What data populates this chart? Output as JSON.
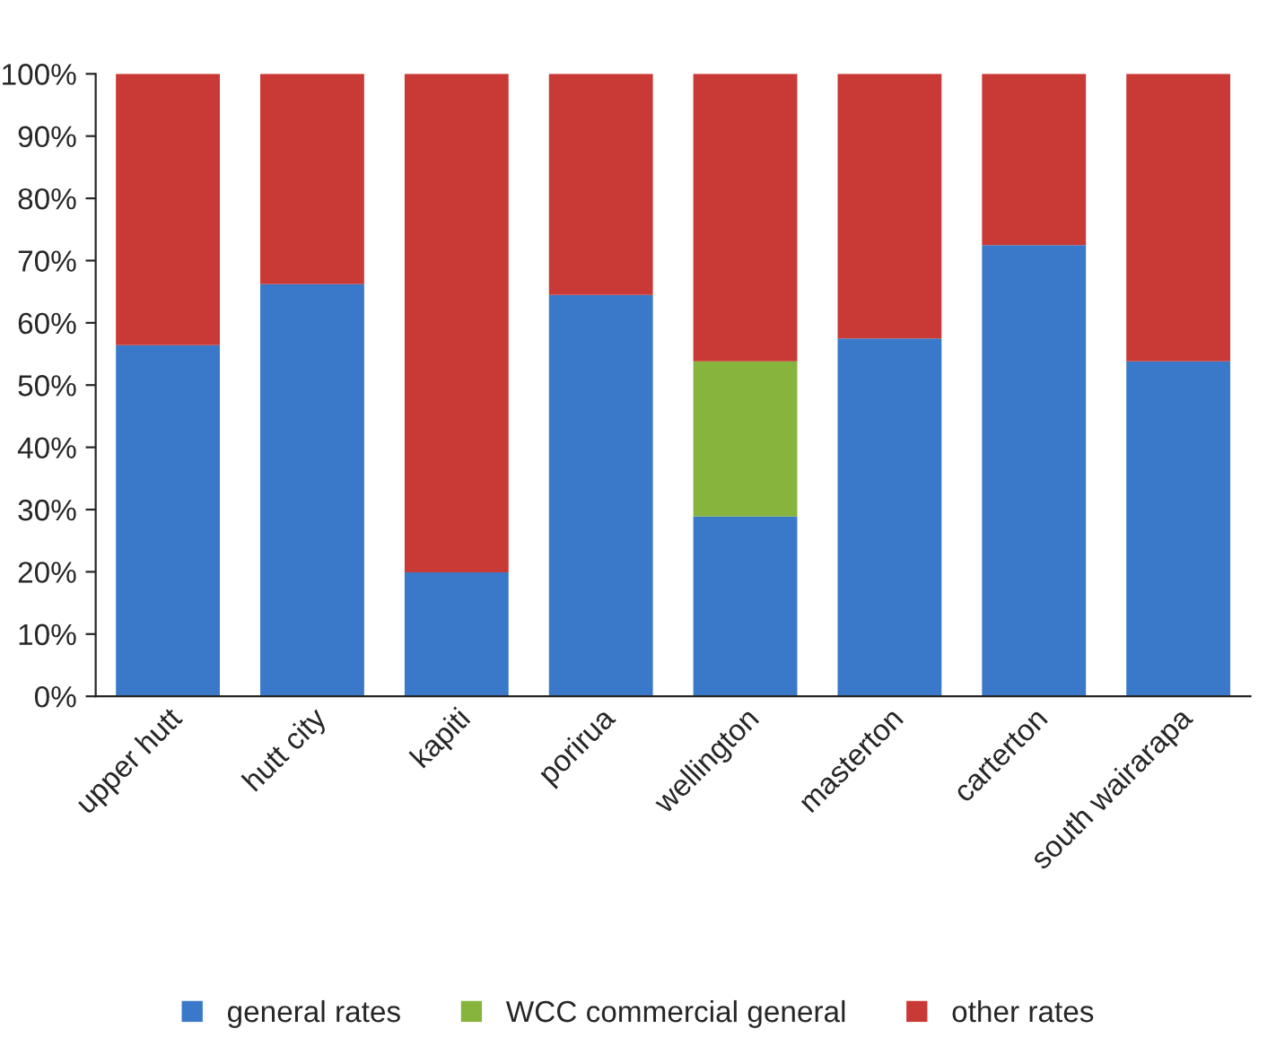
{
  "chart_data": {
    "type": "bar",
    "stacked": true,
    "categories": [
      "upper hutt",
      "hutt city",
      "kapiti",
      "porirua",
      "wellington",
      "masterton",
      "carterton",
      "south wairarapa"
    ],
    "series": [
      {
        "name": "general rates",
        "color": "#3a78c9",
        "values": [
          56.4,
          66.2,
          19.9,
          64.5,
          28.9,
          57.5,
          72.5,
          53.8
        ]
      },
      {
        "name": "WCC commercial general",
        "color": "#86b43c",
        "values": [
          null,
          null,
          null,
          null,
          24.9,
          null,
          null,
          null
        ]
      },
      {
        "name": "other rates",
        "color": "#c93a36",
        "values": [
          43.6,
          33.8,
          80.1,
          35.5,
          46.2,
          42.5,
          27.5,
          46.2
        ]
      }
    ],
    "ylim": [
      0,
      100
    ],
    "yticks": [
      {
        "value": 0,
        "label": "0%"
      },
      {
        "value": 10,
        "label": "10%"
      },
      {
        "value": 20,
        "label": "20%"
      },
      {
        "value": 30,
        "label": "30%"
      },
      {
        "value": 40,
        "label": "40%"
      },
      {
        "value": 50,
        "label": "50%"
      },
      {
        "value": 60,
        "label": "60%"
      },
      {
        "value": 70,
        "label": "70%"
      },
      {
        "value": 80,
        "label": "80%"
      },
      {
        "value": 90,
        "label": "90%"
      },
      {
        "value": 100,
        "label": "100%"
      }
    ],
    "grid": false,
    "legend": "bottom"
  }
}
